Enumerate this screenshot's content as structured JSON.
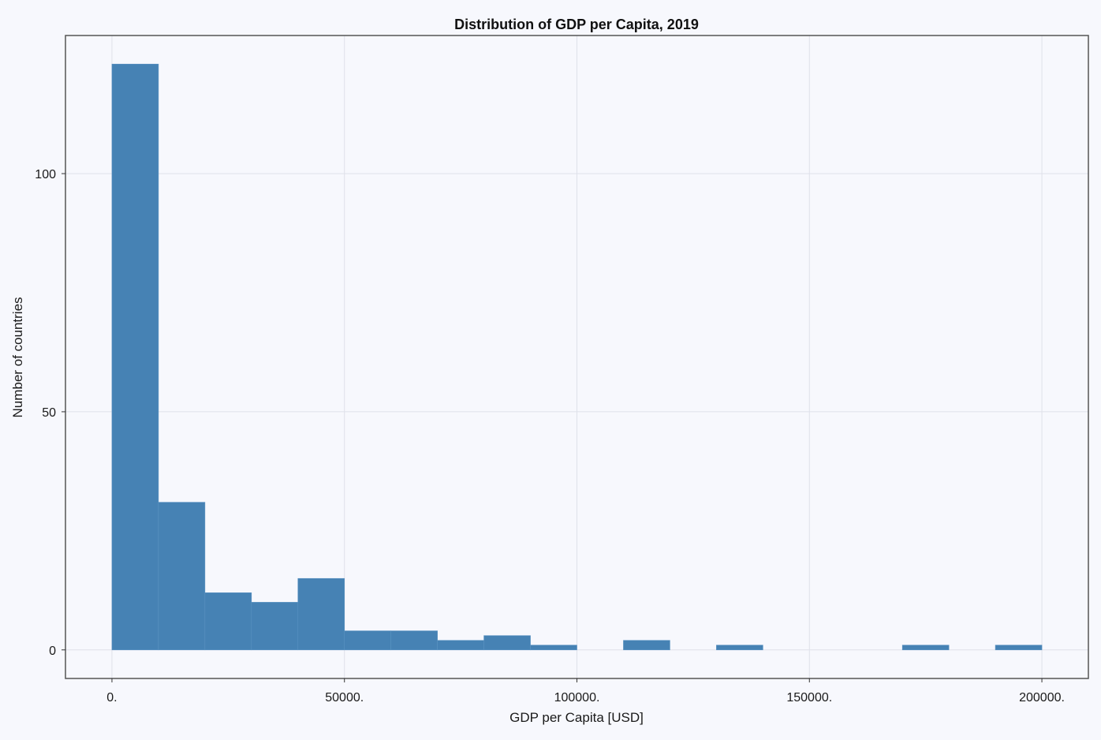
{
  "chart_data": {
    "type": "bar",
    "title": "Distribution of GDP per Capita, 2019",
    "xlabel": "GDP per Capita [USD]",
    "ylabel": "Number of countries",
    "xlim": [
      -10000,
      210000
    ],
    "ylim": [
      -6,
      129
    ],
    "grid": true,
    "bin_width": 10000,
    "bins": [
      {
        "x0": 0,
        "x1": 10000,
        "count": 123
      },
      {
        "x0": 10000,
        "x1": 20000,
        "count": 31
      },
      {
        "x0": 20000,
        "x1": 30000,
        "count": 12
      },
      {
        "x0": 30000,
        "x1": 40000,
        "count": 10
      },
      {
        "x0": 40000,
        "x1": 50000,
        "count": 15
      },
      {
        "x0": 50000,
        "x1": 60000,
        "count": 4
      },
      {
        "x0": 60000,
        "x1": 70000,
        "count": 4
      },
      {
        "x0": 70000,
        "x1": 80000,
        "count": 2
      },
      {
        "x0": 80000,
        "x1": 90000,
        "count": 3
      },
      {
        "x0": 90000,
        "x1": 100000,
        "count": 1
      },
      {
        "x0": 100000,
        "x1": 110000,
        "count": 0
      },
      {
        "x0": 110000,
        "x1": 120000,
        "count": 2
      },
      {
        "x0": 120000,
        "x1": 130000,
        "count": 0
      },
      {
        "x0": 130000,
        "x1": 140000,
        "count": 1
      },
      {
        "x0": 140000,
        "x1": 150000,
        "count": 0
      },
      {
        "x0": 150000,
        "x1": 160000,
        "count": 0
      },
      {
        "x0": 160000,
        "x1": 170000,
        "count": 0
      },
      {
        "x0": 170000,
        "x1": 180000,
        "count": 1
      },
      {
        "x0": 180000,
        "x1": 190000,
        "count": 0
      },
      {
        "x0": 190000,
        "x1": 200000,
        "count": 1
      }
    ],
    "x_ticks": [
      {
        "value": 0,
        "label": "0."
      },
      {
        "value": 50000,
        "label": "50000."
      },
      {
        "value": 100000,
        "label": "100000."
      },
      {
        "value": 150000,
        "label": "150000."
      },
      {
        "value": 200000,
        "label": "200000."
      }
    ],
    "y_ticks": [
      {
        "value": 0,
        "label": "0"
      },
      {
        "value": 50,
        "label": "50"
      },
      {
        "value": 100,
        "label": "100"
      }
    ],
    "colors": {
      "bar_fill": "#4682b4",
      "bar_edge": "#5a93c2",
      "background": "#f7f8fd",
      "grid": "#dfe1ea",
      "frame": "#555555"
    }
  }
}
